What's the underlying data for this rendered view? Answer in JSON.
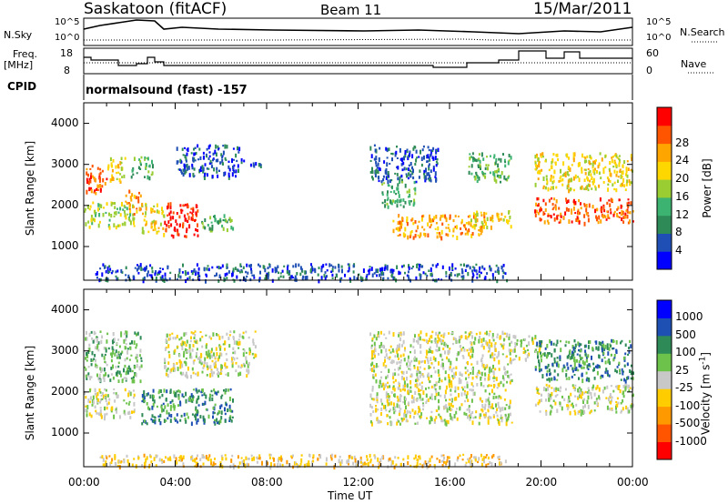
{
  "header": {
    "station": "Saskatoon (fitACF)",
    "beam": "Beam 11",
    "date": "15/Mar/2011"
  },
  "summary": {
    "nsky_label": "N.Sky",
    "nsearch_label": "N.Search",
    "nsky_ticks": [
      "10^5",
      "10^0"
    ],
    "nsearch_ticks": [
      "10^5",
      "10^0"
    ],
    "freq_label": [
      "Freq.",
      "[MHz]"
    ],
    "freq_ticks": [
      "18",
      "8"
    ],
    "nave_label": "Nave",
    "nave_ticks": [
      "60",
      "0"
    ],
    "cpid_label": "CPID",
    "cpid_text": "normalsound (fast) -157"
  },
  "colors": {
    "power": [
      "#0000ff",
      "#1f4fb5",
      "#2e8b57",
      "#3cb371",
      "#9acd32",
      "#ffd700",
      "#ffa500",
      "#ff5500",
      "#ff0000"
    ],
    "velocity": [
      "#0000ff",
      "#1e50b4",
      "#2e8b57",
      "#6cc24a",
      "#c8c8c8",
      "#ffcc00",
      "#ff9900",
      "#ff5500",
      "#ff0000"
    ]
  },
  "chart_data": [
    {
      "type": "heatmap",
      "name": "power-panel",
      "xlabel": "",
      "ylabel": "Slant Range [km]",
      "xlim": [
        0,
        24
      ],
      "ylim": [
        180,
        4500
      ],
      "yticks": [
        "1000",
        "2000",
        "3000",
        "4000"
      ],
      "colorbar": {
        "label": "Power [dB]",
        "ticks": [
          "4",
          "8",
          "12",
          "16",
          "20",
          "24",
          "28"
        ]
      },
      "regions": [
        {
          "t": [
            0.0,
            1.0
          ],
          "r": [
            2300,
            3000
          ],
          "level": 7
        },
        {
          "t": [
            1.0,
            1.8
          ],
          "r": [
            2600,
            3200
          ],
          "level": 5
        },
        {
          "t": [
            0.0,
            2.2
          ],
          "r": [
            1500,
            2100
          ],
          "level": 4
        },
        {
          "t": [
            1.8,
            2.5
          ],
          "r": [
            1800,
            2400
          ],
          "level": 6
        },
        {
          "t": [
            2.5,
            3.5
          ],
          "r": [
            1300,
            2100
          ],
          "level": 5
        },
        {
          "t": [
            3.5,
            5.0
          ],
          "r": [
            1250,
            2100
          ],
          "level": 8
        },
        {
          "t": [
            2.0,
            3.0
          ],
          "r": [
            2700,
            3200
          ],
          "level": 3
        },
        {
          "t": [
            5.0,
            6.5
          ],
          "r": [
            1400,
            1800
          ],
          "level": 3
        },
        {
          "t": [
            4.0,
            6.8
          ],
          "r": [
            2700,
            3500
          ],
          "level": 1
        },
        {
          "t": [
            6.8,
            8.0
          ],
          "r": [
            3000,
            3150
          ],
          "level": 1
        },
        {
          "t": [
            12.5,
            15.5
          ],
          "r": [
            2600,
            3500
          ],
          "level": 1
        },
        {
          "t": [
            13.0,
            14.5
          ],
          "r": [
            2000,
            2600
          ],
          "level": 3
        },
        {
          "t": [
            13.5,
            17.5
          ],
          "r": [
            1250,
            1800
          ],
          "level": 6
        },
        {
          "t": [
            16.8,
            18.7
          ],
          "r": [
            1500,
            1900
          ],
          "level": 5
        },
        {
          "t": [
            16.8,
            18.7
          ],
          "r": [
            2600,
            3300
          ],
          "level": 3
        },
        {
          "t": [
            19.7,
            24.0
          ],
          "r": [
            1600,
            2200
          ],
          "level": 7
        },
        {
          "t": [
            19.7,
            24.0
          ],
          "r": [
            2400,
            3300
          ],
          "level": 5
        },
        {
          "t": [
            0.5,
            18.5
          ],
          "r": [
            200,
            600
          ],
          "level": 1
        }
      ]
    },
    {
      "type": "heatmap",
      "name": "velocity-panel",
      "xlabel": "Time UT",
      "ylabel": "Slant Range [km]",
      "xlim": [
        0,
        24
      ],
      "ylim": [
        180,
        4500
      ],
      "xticks": [
        "00:00",
        "04:00",
        "08:00",
        "12:00",
        "16:00",
        "20:00",
        "00:00"
      ],
      "yticks": [
        "1000",
        "2000",
        "3000",
        "4000"
      ],
      "colorbar": {
        "label": "Velocity [m s^-1]",
        "ticks": [
          "1000",
          "500",
          "100",
          "25",
          "-25",
          "-100",
          "-500",
          "-1000"
        ]
      },
      "regions": [
        {
          "t": [
            0.0,
            2.5
          ],
          "r": [
            2300,
            3500
          ],
          "level": 3
        },
        {
          "t": [
            0.0,
            2.2
          ],
          "r": [
            1400,
            2100
          ],
          "level": 4
        },
        {
          "t": [
            2.5,
            6.5
          ],
          "r": [
            1250,
            2100
          ],
          "level": 2
        },
        {
          "t": [
            3.5,
            7.5
          ],
          "r": [
            2400,
            3500
          ],
          "level": 4
        },
        {
          "t": [
            12.5,
            18.7
          ],
          "r": [
            1250,
            3500
          ],
          "level": 4
        },
        {
          "t": [
            18.7,
            20.0
          ],
          "r": [
            2800,
            3400
          ],
          "level": 4
        },
        {
          "t": [
            19.7,
            24.0
          ],
          "r": [
            2300,
            3300
          ],
          "level": 2
        },
        {
          "t": [
            19.7,
            24.0
          ],
          "r": [
            1500,
            2200
          ],
          "level": 4
        },
        {
          "t": [
            0.5,
            18.5
          ],
          "r": [
            200,
            500
          ],
          "level": 5
        }
      ]
    }
  ]
}
